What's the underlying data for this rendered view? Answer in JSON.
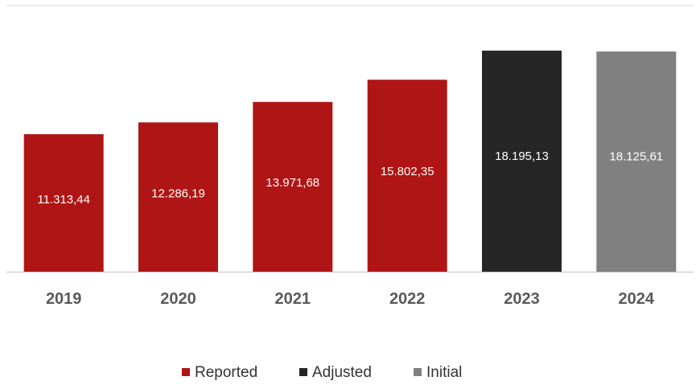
{
  "chart_data": {
    "type": "bar",
    "title": "",
    "xlabel": "",
    "ylabel": "",
    "categories": [
      "2019",
      "2020",
      "2021",
      "2022",
      "2023",
      "2024"
    ],
    "values": [
      11313.44,
      12286.19,
      13971.68,
      15802.35,
      18195.13,
      18125.61
    ],
    "value_labels": [
      "11.313,44",
      "12.286,19",
      "13.971,68",
      "15.802,35",
      "18.195,13",
      "18.125,61"
    ],
    "bar_series": [
      "Reported",
      "Reported",
      "Reported",
      "Reported",
      "Adjusted",
      "Initial"
    ],
    "series": [
      {
        "name": "Reported",
        "color": "#b01515"
      },
      {
        "name": "Adjusted",
        "color": "#262626"
      },
      {
        "name": "Initial",
        "color": "#808080"
      }
    ],
    "ylim": [
      0,
      18195.13
    ],
    "grid": false,
    "legend_position": "bottom"
  }
}
